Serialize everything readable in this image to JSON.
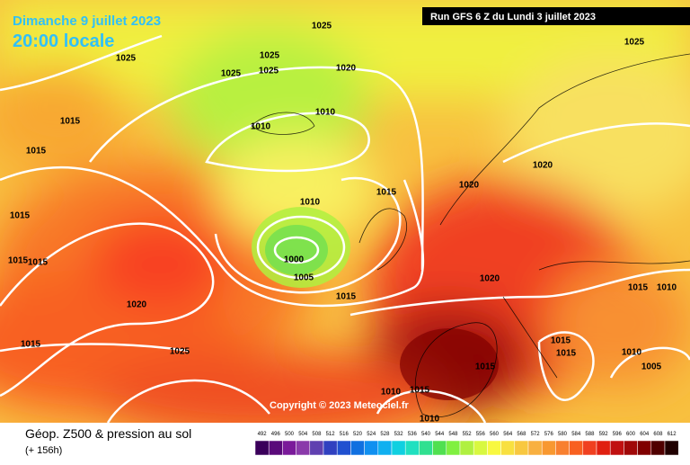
{
  "header": {
    "date": "Dimanche 9 juillet 2023",
    "time": "20:00 locale",
    "run": "Run GFS 6 Z du Lundi 3 juillet 2023"
  },
  "footer": {
    "title": "Géop. Z500 & pression au sol",
    "lead": "(+ 156h)",
    "copyright": "Copyright © 2023 Meteociel.fr"
  },
  "isobar_labels": [
    "1025",
    "1025",
    "1025",
    "1025",
    "1025",
    "1020",
    "1025",
    "1015",
    "1010",
    "1010",
    "1015",
    "1020",
    "1020",
    "1015",
    "1010",
    "1015",
    "1015",
    "1015",
    "1000",
    "1005",
    "1015",
    "1020",
    "1020",
    "1015",
    "1010",
    "1015",
    "1025",
    "1015",
    "1015",
    "1010",
    "1005",
    "1015",
    "1015",
    "1010",
    "1010"
  ],
  "legend": {
    "values": [
      492,
      496,
      500,
      504,
      508,
      512,
      516,
      520,
      524,
      528,
      532,
      536,
      540,
      544,
      548,
      552,
      556,
      560,
      564,
      568,
      572,
      576,
      580,
      584,
      588,
      592,
      596,
      600,
      604,
      608,
      612
    ],
    "colors": [
      "#3a005a",
      "#5a0a7a",
      "#7a1a9a",
      "#8a3aaa",
      "#6040b0",
      "#3040c0",
      "#2050d0",
      "#1070e0",
      "#1090f0",
      "#10b0f0",
      "#10d0e0",
      "#20e0c0",
      "#30e090",
      "#50e050",
      "#80f040",
      "#b0f040",
      "#d8f840",
      "#f8f840",
      "#f8e040",
      "#f8c840",
      "#f8b040",
      "#f89830",
      "#f88030",
      "#f86020",
      "#f04020",
      "#e02010",
      "#c01010",
      "#a00808",
      "#800000",
      "#500000",
      "#200000"
    ]
  }
}
